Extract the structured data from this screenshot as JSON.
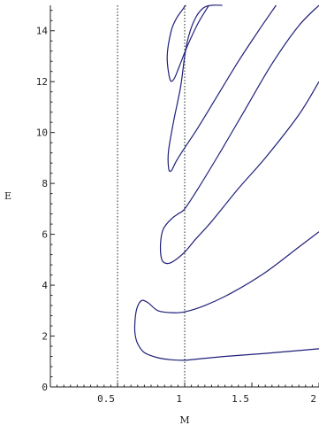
{
  "chart_data": {
    "type": "line",
    "title": "",
    "xlabel": "M",
    "ylabel": "E",
    "xlim": [
      0,
      2
    ],
    "ylim": [
      0,
      15
    ],
    "grid": false,
    "legend": "none",
    "x_ticks": [
      0.5,
      1,
      1.5,
      2
    ],
    "x_tick_labels": [
      "0.5",
      "1",
      "1.5",
      "2"
    ],
    "y_ticks": [
      0,
      2,
      4,
      6,
      8,
      10,
      12,
      14
    ],
    "y_tick_labels": [
      "0",
      "2",
      "4",
      "6",
      "8",
      "10",
      "12",
      "14"
    ],
    "reference_lines_x": [
      0.5,
      1.0
    ],
    "colors": {
      "curve": "#1f1f7a",
      "axis": "#222222",
      "reference": "#222222"
    },
    "series": [
      {
        "x": [
          2.0,
          1.6,
          1.3,
          1.1,
          1.0,
          0.9,
          0.8,
          0.7,
          0.65,
          0.63,
          0.63,
          0.645,
          0.68,
          0.73,
          0.8,
          0.9,
          1.0,
          1.15,
          1.35,
          1.6,
          1.85,
          2.0
        ],
        "y": [
          1.5,
          1.32,
          1.2,
          1.1,
          1.05,
          1.07,
          1.15,
          1.35,
          1.7,
          2.1,
          2.6,
          3.1,
          3.4,
          3.3,
          3.0,
          2.92,
          2.95,
          3.2,
          3.7,
          4.5,
          5.5,
          6.1
        ]
      },
      {
        "x": [
          2.0,
          1.85,
          1.6,
          1.4,
          1.2,
          1.08,
          1.0,
          0.92,
          0.87,
          0.83,
          0.82,
          0.84,
          0.9,
          0.95,
          1.0,
          1.1,
          1.25,
          1.45,
          1.65,
          1.85,
          2.0
        ],
        "y": [
          12.0,
          10.7,
          9.0,
          7.8,
          6.5,
          5.8,
          5.3,
          4.95,
          4.85,
          5.0,
          5.6,
          6.2,
          6.6,
          6.8,
          7.0,
          7.8,
          9.1,
          10.9,
          12.7,
          14.2,
          15.0
        ]
      },
      {
        "x": [
          1.68,
          1.55,
          1.4,
          1.25,
          1.1,
          1.0,
          0.94,
          0.9,
          0.88,
          0.88,
          0.92,
          0.97,
          1.0,
          1.03,
          1.08,
          1.14,
          1.2,
          1.28
        ],
        "y": [
          15.0,
          14.0,
          12.8,
          11.5,
          10.2,
          9.4,
          8.9,
          8.5,
          8.6,
          9.3,
          10.5,
          11.8,
          13.0,
          13.8,
          14.5,
          14.9,
          15.0,
          15.0
        ]
      },
      {
        "x": [
          1.18,
          1.1,
          1.02,
          0.96,
          0.92,
          0.89,
          0.87,
          0.9,
          0.94,
          0.98,
          1.0,
          1.01
        ],
        "y": [
          15.0,
          14.3,
          13.4,
          12.6,
          12.1,
          12.1,
          13.0,
          14.0,
          14.5,
          14.8,
          14.95,
          15.0
        ]
      }
    ]
  }
}
